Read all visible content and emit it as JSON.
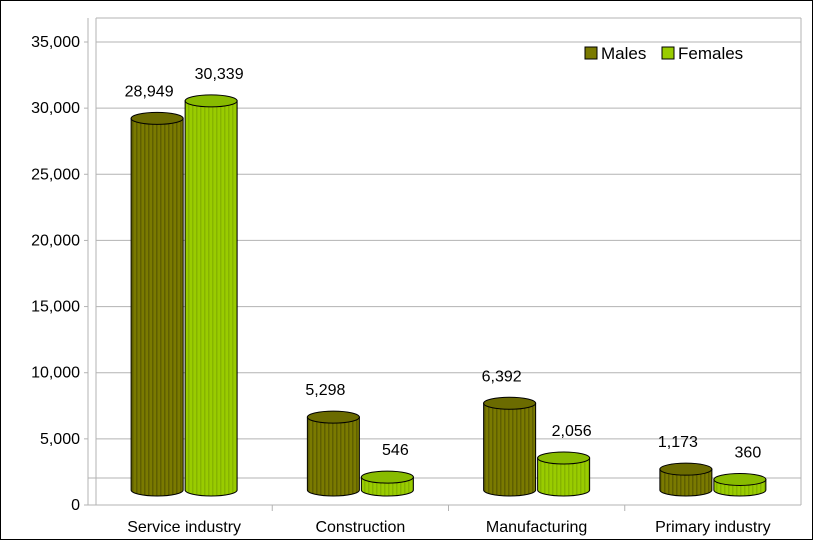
{
  "chart_data": {
    "type": "bar",
    "style": "3d-cylinder",
    "categories": [
      "Service industry",
      "Construction",
      "Manufacturing",
      "Primary industry"
    ],
    "series": [
      {
        "name": "Males",
        "values": [
          28949,
          5298,
          6392,
          1173
        ],
        "color": "#7a7a00",
        "label_text": [
          "28,949",
          "5,298",
          "6,392",
          "1,173"
        ]
      },
      {
        "name": "Females",
        "values": [
          30339,
          546,
          2056,
          360
        ],
        "color": "#99cc00",
        "label_text": [
          "30,339",
          "546",
          "2,056",
          "360"
        ]
      }
    ],
    "y_ticks": [
      "0",
      "5,000",
      "10,000",
      "15,000",
      "20,000",
      "25,000",
      "30,000",
      "35,000"
    ],
    "y_tick_values": [
      0,
      5000,
      10000,
      15000,
      20000,
      25000,
      30000,
      35000
    ],
    "ylim": [
      0,
      35000
    ],
    "grid": true,
    "legend_position": "top-right"
  }
}
